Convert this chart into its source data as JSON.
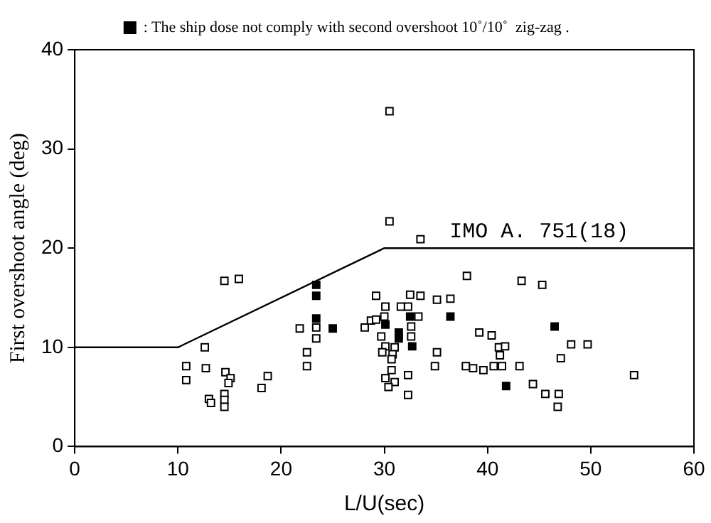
{
  "chart_data": {
    "type": "scatter",
    "xlabel": "L/U(sec)",
    "ylabel": "First overshoot angle (deg)",
    "xlim": [
      0,
      60
    ],
    "xticks": [
      0,
      10,
      20,
      30,
      40,
      50,
      60
    ],
    "ylim": [
      0,
      40
    ],
    "yticks": [
      0,
      10,
      20,
      30,
      40
    ],
    "grid": false,
    "legend": "top",
    "series": [
      {
        "color": "#ffffff",
        "marker": "square",
        "x": [
          14.5,
          15.9,
          12.6,
          10.8,
          12.7,
          14.6,
          10.8,
          15.1,
          14.9,
          18.7,
          18.1,
          14.5,
          13.0,
          13.2,
          14.5,
          14.5,
          21.8,
          22.5,
          22.5,
          23.4,
          23.4,
          33.5,
          30.5,
          30.5,
          38.0,
          29.2,
          32.5,
          33.5,
          35.1,
          36.4,
          30.1,
          31.6,
          32.3,
          28.7,
          29.2,
          30.0,
          28.1,
          33.3,
          32.6,
          29.7,
          32.6,
          30.1,
          31.0,
          29.8,
          30.8,
          30.7,
          35.1,
          34.9,
          39.2,
          40.4,
          41.1,
          41.2,
          37.9,
          38.6,
          39.6,
          40.6,
          41.4,
          30.7,
          30.1,
          32.3,
          31.0,
          30.4,
          32.3,
          43.3,
          45.3,
          48.1,
          49.7,
          47.1,
          41.7,
          43.1,
          44.4,
          45.6,
          46.9,
          46.8,
          54.2
        ],
        "values": [
          16.7,
          16.9,
          10.0,
          8.1,
          7.9,
          7.5,
          6.7,
          6.9,
          6.4,
          7.1,
          5.9,
          5.3,
          4.8,
          4.4,
          4.7,
          4.0,
          11.9,
          9.5,
          8.1,
          12.0,
          10.9,
          20.9,
          22.7,
          33.8,
          17.2,
          15.2,
          15.3,
          15.2,
          14.8,
          14.9,
          14.1,
          14.1,
          14.1,
          12.7,
          12.8,
          13.1,
          12.0,
          13.1,
          12.1,
          11.1,
          11.1,
          10.1,
          10.0,
          9.5,
          9.3,
          8.8,
          9.5,
          8.1,
          11.5,
          11.2,
          10.0,
          9.2,
          8.1,
          7.9,
          7.7,
          8.1,
          8.1,
          7.7,
          6.9,
          7.2,
          6.5,
          6.0,
          5.2,
          16.7,
          16.3,
          10.3,
          10.3,
          8.9,
          10.1,
          8.1,
          6.3,
          5.3,
          5.3,
          4.0,
          7.2
        ]
      },
      {
        "name": ": The ship dose not comply with second overshoot 10˚/10˚  zig-zag .",
        "color": "#000000",
        "marker": "square",
        "x": [
          23.4,
          23.4,
          23.4,
          25.0,
          32.5,
          36.4,
          30.1,
          31.4,
          31.4,
          32.7,
          41.8,
          46.5
        ],
        "values": [
          16.3,
          15.2,
          12.9,
          11.9,
          13.1,
          13.1,
          12.3,
          11.5,
          10.9,
          10.1,
          6.1,
          12.1
        ]
      },
      {
        "type": "line",
        "name": "IMO A. 751(18)",
        "color": "#000000",
        "x": [
          0,
          10,
          30,
          60
        ],
        "values": [
          10,
          10,
          20,
          20
        ]
      }
    ]
  }
}
